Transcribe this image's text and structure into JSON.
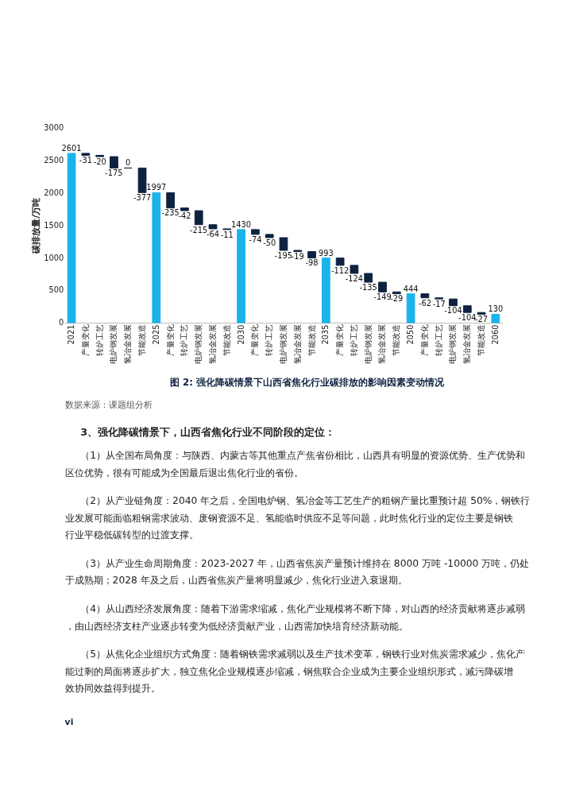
{
  "chart_data": {
    "type": "bar",
    "title": "图 2: 强化降碳情景下山西省焦化行业碳排放的影响因素变动情况",
    "ylabel": "碳排放量/万吨",
    "categories": [
      "2021",
      "产量变化",
      "转炉工艺",
      "电炉钢发展",
      "氢冶金发展",
      "节能改造",
      "2025",
      "产量变化",
      "转炉工艺",
      "电炉钢发展",
      "氢冶金发展",
      "节能改造",
      "2030",
      "产量变化",
      "转炉工艺",
      "电炉钢发展",
      "氢冶金发展",
      "节能改造",
      "2035",
      "产量变化",
      "转炉工艺",
      "电炉钢发展",
      "氢冶金发展",
      "节能改造",
      "2050",
      "产量变化",
      "转炉工艺",
      "电炉钢发展",
      "氢冶金发展",
      "节能改造",
      "2060"
    ],
    "values": [
      2601,
      -31,
      -20,
      -175,
      0,
      -377,
      1997,
      -235,
      -42,
      -215,
      -64,
      -11,
      1430,
      -74,
      -50,
      -195,
      -19,
      -98,
      993,
      -112,
      -124,
      -135,
      -149,
      -29,
      444,
      -62,
      -17,
      -104,
      -104,
      -27,
      130
    ],
    "base": [
      0,
      2601,
      2570,
      2550,
      2375,
      2375,
      0,
      1997,
      1762,
      1720,
      1505,
      1441,
      0,
      1430,
      1356,
      1306,
      1111,
      1092,
      0,
      993,
      881,
      757,
      622,
      473,
      0,
      444,
      382,
      365,
      261,
      157,
      0
    ],
    "colors": [
      "#1bb3ea",
      "#0e2240",
      "#0e2240",
      "#0e2240",
      "#0e2240",
      "#0e2240",
      "#1bb3ea",
      "#0e2240",
      "#0e2240",
      "#0e2240",
      "#0e2240",
      "#0e2240",
      "#1bb3ea",
      "#0e2240",
      "#0e2240",
      "#0e2240",
      "#0e2240",
      "#0e2240",
      "#1bb3ea",
      "#0e2240",
      "#0e2240",
      "#0e2240",
      "#0e2240",
      "#0e2240",
      "#1bb3ea",
      "#0e2240",
      "#0e2240",
      "#0e2240",
      "#0e2240",
      "#0e2240",
      "#1bb3ea"
    ],
    "ylim": [
      0,
      3000
    ],
    "yticks": [
      0,
      500,
      1000,
      1500,
      2000,
      2500,
      3000
    ],
    "data_labels": true,
    "grid": false,
    "annotations": [
      "数据来源：课题组分析",
      "3、强化降碳情景下，山西省焦化行业不同阶段的定位：",
      "（1）从全国布局角度：与陕西、内蒙古等其他重点产焦省份相比，山西具有明显的资源优势、生产优势和区位优势，很有可能成为全国最后退出焦化行业的省份。",
      "（2）从产业链角度：2040 年之后，全国电炉钢、氢冶金等工艺生产的粗钢产量比重预计超 50%，钢铁行业发展可能面临粗钢需求波动、废钢资源不足、氢能临时供应不足等问题，此时焦化行业的定位主要是钢铁行业平稳低碳转型的过渡支撑。",
      "（3）从产业生命周期角度：2023-2027 年，山西省焦炭产量预计维持在 8000 万吨 -10000 万吨，仍处于成熟期；2028 年及之后，山西省焦炭产量将明显减少，焦化行业进入衰退期。",
      "（4）从山西经济发展角度：随着下游需求缩减，焦化产业规模将不断下降，对山西的经济贡献将逐步减弱，由山西经济支柱产业逐步转变为低经济贡献产业，山西需加快培育经济新动能。",
      "（5）从焦化企业组织方式角度：随着钢铁需求减弱以及生产技术变革，钢铁行业对焦炭需求减少，焦化产能过剩的局面将逐步扩大，独立焦化企业规模逐步缩减，钢焦联合企业成为主要企业组织形式，减污降碳增效协同效益得到提升。",
      "vi"
    ]
  }
}
